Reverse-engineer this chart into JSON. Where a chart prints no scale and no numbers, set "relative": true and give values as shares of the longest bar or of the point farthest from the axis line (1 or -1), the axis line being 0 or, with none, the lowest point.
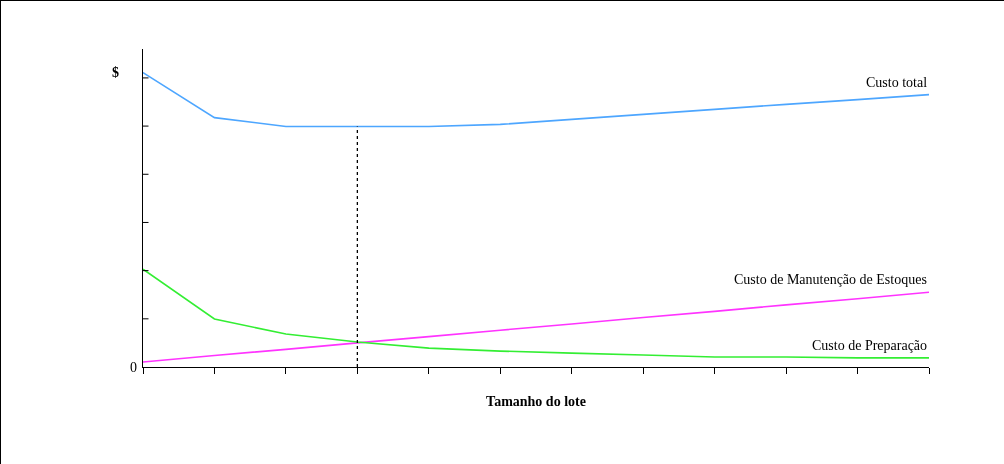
{
  "chart_data": {
    "type": "line",
    "relative": true,
    "xlabel": "Tamanho do lote",
    "ylabel": "$",
    "annotations": [
      "0"
    ],
    "legend": false,
    "grid": false,
    "marker": "none",
    "categories": [
      null,
      null,
      null,
      null,
      null,
      null,
      null,
      null,
      null,
      null,
      null,
      null
    ],
    "series": [
      {
        "name": "Custo total",
        "color": "#4da6ff",
        "values": [
          1.0,
          0.847,
          0.817,
          0.817,
          0.817,
          0.824,
          0.841,
          0.858,
          0.875,
          0.892,
          0.908,
          0.925
        ]
      },
      {
        "name": "Custo de Manutenção de Estoques",
        "color": "#ff33ff",
        "values": [
          0.017,
          0.039,
          0.06,
          0.082,
          0.103,
          0.125,
          0.146,
          0.168,
          0.189,
          0.211,
          0.232,
          0.254
        ]
      },
      {
        "name": "Custo de Preparação",
        "color": "#33ee33",
        "values": [
          0.332,
          0.163,
          0.112,
          0.085,
          0.064,
          0.054,
          0.047,
          0.041,
          0.034,
          0.034,
          0.031,
          0.031
        ]
      }
    ]
  }
}
